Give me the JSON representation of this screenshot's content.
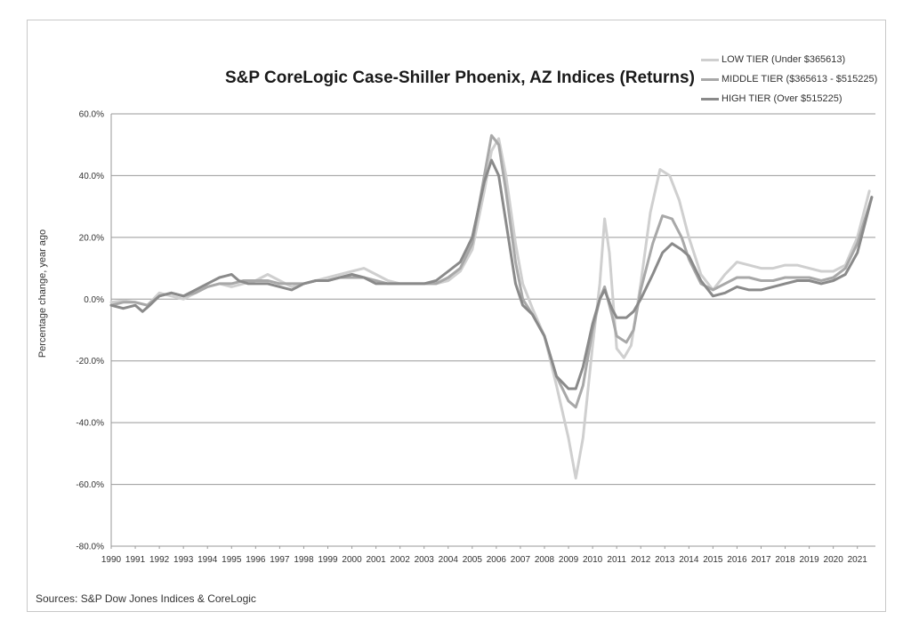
{
  "chart_data": {
    "type": "line",
    "title": "S&P CoreLogic Case-Shiller Phoenix, AZ Indices (Returns)",
    "ylabel": "Percentage change, year ago",
    "xlabel": "",
    "source": "Sources: S&P Dow Jones Indices & CoreLogic",
    "ylim": [
      -80,
      60
    ],
    "xlim": [
      1990,
      2021.75
    ],
    "y_ticks": [
      "60.0%",
      "40.0%",
      "20.0%",
      "0.0%",
      "-20.0%",
      "-40.0%",
      "-60.0%",
      "-80.0%"
    ],
    "x_ticks": [
      "1990",
      "1991",
      "1992",
      "1993",
      "1994",
      "1995",
      "1996",
      "1997",
      "1998",
      "1999",
      "2000",
      "2001",
      "2002",
      "2003",
      "2004",
      "2005",
      "2006",
      "2007",
      "2008",
      "2009",
      "2010",
      "2011",
      "2012",
      "2013",
      "2014",
      "2015",
      "2016",
      "2017",
      "2018",
      "2019",
      "2020",
      "2021"
    ],
    "grid": true,
    "legend_position": "top-right",
    "series": [
      {
        "name": "LOW TIER (Under $365613)",
        "color": "#cfcfcf",
        "points": [
          [
            1990,
            -1
          ],
          [
            1990.5,
            -0.5
          ],
          [
            1991,
            -1
          ],
          [
            1991.5,
            -2
          ],
          [
            1992,
            2
          ],
          [
            1992.5,
            1
          ],
          [
            1993,
            0
          ],
          [
            1993.5,
            2
          ],
          [
            1994,
            4
          ],
          [
            1994.5,
            5
          ],
          [
            1995,
            4
          ],
          [
            1995.5,
            5
          ],
          [
            1996,
            6
          ],
          [
            1996.5,
            8
          ],
          [
            1997,
            6
          ],
          [
            1997.5,
            4
          ],
          [
            1998,
            5
          ],
          [
            1998.5,
            6
          ],
          [
            1999,
            7
          ],
          [
            1999.5,
            8
          ],
          [
            2000,
            9
          ],
          [
            2000.5,
            10
          ],
          [
            2001,
            8
          ],
          [
            2001.5,
            6
          ],
          [
            2002,
            5
          ],
          [
            2002.5,
            5
          ],
          [
            2003,
            5
          ],
          [
            2003.5,
            5
          ],
          [
            2004,
            6
          ],
          [
            2004.5,
            9
          ],
          [
            2005,
            16
          ],
          [
            2005.5,
            35
          ],
          [
            2005.8,
            48
          ],
          [
            2006.1,
            52
          ],
          [
            2006.4,
            40
          ],
          [
            2006.8,
            18
          ],
          [
            2007.1,
            5
          ],
          [
            2007.5,
            -3
          ],
          [
            2008,
            -12
          ],
          [
            2008.5,
            -28
          ],
          [
            2009,
            -45
          ],
          [
            2009.3,
            -58
          ],
          [
            2009.6,
            -45
          ],
          [
            2010,
            -15
          ],
          [
            2010.3,
            5
          ],
          [
            2010.5,
            26
          ],
          [
            2010.7,
            15
          ],
          [
            2011,
            -16
          ],
          [
            2011.3,
            -19
          ],
          [
            2011.6,
            -15
          ],
          [
            2012,
            5
          ],
          [
            2012.4,
            28
          ],
          [
            2012.8,
            42
          ],
          [
            2013.2,
            40
          ],
          [
            2013.6,
            32
          ],
          [
            2014,
            20
          ],
          [
            2014.5,
            8
          ],
          [
            2015,
            3
          ],
          [
            2015.5,
            8
          ],
          [
            2016,
            12
          ],
          [
            2016.5,
            11
          ],
          [
            2017,
            10
          ],
          [
            2017.5,
            10
          ],
          [
            2018,
            11
          ],
          [
            2018.5,
            11
          ],
          [
            2019,
            10
          ],
          [
            2019.5,
            9
          ],
          [
            2020,
            9
          ],
          [
            2020.5,
            11
          ],
          [
            2021,
            20
          ],
          [
            2021.5,
            35
          ]
        ]
      },
      {
        "name": "MIDDLE TIER ($365613 - $515225)",
        "color": "#a8a8a8",
        "points": [
          [
            1990,
            -2
          ],
          [
            1990.5,
            -1
          ],
          [
            1991,
            -1
          ],
          [
            1991.5,
            -2
          ],
          [
            1992,
            1
          ],
          [
            1992.5,
            2
          ],
          [
            1993,
            1
          ],
          [
            1993.5,
            2
          ],
          [
            1994,
            4
          ],
          [
            1994.5,
            5
          ],
          [
            1995,
            5
          ],
          [
            1995.5,
            6
          ],
          [
            1996,
            6
          ],
          [
            1996.5,
            6
          ],
          [
            1997,
            5
          ],
          [
            1997.5,
            5
          ],
          [
            1998,
            5
          ],
          [
            1998.5,
            6
          ],
          [
            1999,
            6
          ],
          [
            1999.5,
            7
          ],
          [
            2000,
            7
          ],
          [
            2000.5,
            7
          ],
          [
            2001,
            6
          ],
          [
            2001.5,
            5
          ],
          [
            2002,
            5
          ],
          [
            2002.5,
            5
          ],
          [
            2003,
            5
          ],
          [
            2003.5,
            5
          ],
          [
            2004,
            7
          ],
          [
            2004.5,
            10
          ],
          [
            2005,
            18
          ],
          [
            2005.5,
            40
          ],
          [
            2005.8,
            53
          ],
          [
            2006.1,
            50
          ],
          [
            2006.4,
            35
          ],
          [
            2006.8,
            12
          ],
          [
            2007.1,
            0
          ],
          [
            2007.5,
            -5
          ],
          [
            2008,
            -12
          ],
          [
            2008.5,
            -25
          ],
          [
            2009,
            -33
          ],
          [
            2009.3,
            -35
          ],
          [
            2009.6,
            -28
          ],
          [
            2010,
            -10
          ],
          [
            2010.3,
            0
          ],
          [
            2010.5,
            4
          ],
          [
            2010.8,
            -5
          ],
          [
            2011,
            -12
          ],
          [
            2011.4,
            -14
          ],
          [
            2011.7,
            -10
          ],
          [
            2012,
            3
          ],
          [
            2012.5,
            18
          ],
          [
            2012.9,
            27
          ],
          [
            2013.3,
            26
          ],
          [
            2013.7,
            20
          ],
          [
            2014,
            13
          ],
          [
            2014.5,
            5
          ],
          [
            2015,
            3
          ],
          [
            2015.5,
            5
          ],
          [
            2016,
            7
          ],
          [
            2016.5,
            7
          ],
          [
            2017,
            6
          ],
          [
            2017.5,
            6
          ],
          [
            2018,
            7
          ],
          [
            2018.5,
            7
          ],
          [
            2019,
            7
          ],
          [
            2019.5,
            6
          ],
          [
            2020,
            7
          ],
          [
            2020.5,
            10
          ],
          [
            2021,
            18
          ],
          [
            2021.6,
            33
          ]
        ]
      },
      {
        "name": "HIGH TIER (Over $515225)",
        "color": "#8a8a8a",
        "points": [
          [
            1990,
            -2
          ],
          [
            1990.5,
            -3
          ],
          [
            1991,
            -2
          ],
          [
            1991.3,
            -4
          ],
          [
            1991.6,
            -2
          ],
          [
            1992,
            1
          ],
          [
            1992.5,
            2
          ],
          [
            1993,
            1
          ],
          [
            1993.5,
            3
          ],
          [
            1994,
            5
          ],
          [
            1994.5,
            7
          ],
          [
            1995,
            8
          ],
          [
            1995.3,
            6
          ],
          [
            1995.7,
            5
          ],
          [
            1996,
            5
          ],
          [
            1996.5,
            5
          ],
          [
            1997,
            4
          ],
          [
            1997.5,
            3
          ],
          [
            1998,
            5
          ],
          [
            1998.5,
            6
          ],
          [
            1999,
            6
          ],
          [
            1999.5,
            7
          ],
          [
            2000,
            8
          ],
          [
            2000.5,
            7
          ],
          [
            2001,
            5
          ],
          [
            2001.5,
            5
          ],
          [
            2002,
            5
          ],
          [
            2002.5,
            5
          ],
          [
            2003,
            5
          ],
          [
            2003.5,
            6
          ],
          [
            2004,
            9
          ],
          [
            2004.5,
            12
          ],
          [
            2005,
            20
          ],
          [
            2005.5,
            38
          ],
          [
            2005.8,
            45
          ],
          [
            2006.1,
            40
          ],
          [
            2006.4,
            25
          ],
          [
            2006.8,
            5
          ],
          [
            2007.1,
            -2
          ],
          [
            2007.5,
            -5
          ],
          [
            2008,
            -12
          ],
          [
            2008.5,
            -25
          ],
          [
            2009,
            -29
          ],
          [
            2009.3,
            -29
          ],
          [
            2009.6,
            -22
          ],
          [
            2010,
            -8
          ],
          [
            2010.3,
            0
          ],
          [
            2010.5,
            3
          ],
          [
            2010.8,
            -3
          ],
          [
            2011,
            -6
          ],
          [
            2011.4,
            -6
          ],
          [
            2011.7,
            -4
          ],
          [
            2012,
            0
          ],
          [
            2012.5,
            8
          ],
          [
            2012.9,
            15
          ],
          [
            2013.3,
            18
          ],
          [
            2013.7,
            16
          ],
          [
            2014,
            14
          ],
          [
            2014.5,
            6
          ],
          [
            2015,
            1
          ],
          [
            2015.5,
            2
          ],
          [
            2016,
            4
          ],
          [
            2016.5,
            3
          ],
          [
            2017,
            3
          ],
          [
            2017.5,
            4
          ],
          [
            2018,
            5
          ],
          [
            2018.5,
            6
          ],
          [
            2019,
            6
          ],
          [
            2019.5,
            5
          ],
          [
            2020,
            6
          ],
          [
            2020.5,
            8
          ],
          [
            2021,
            15
          ],
          [
            2021.6,
            33
          ]
        ]
      }
    ]
  }
}
